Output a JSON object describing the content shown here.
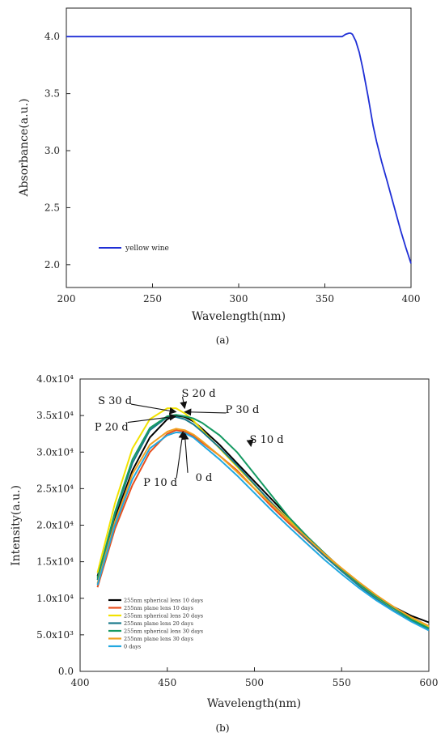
{
  "chart_data": [
    {
      "type": "line",
      "title": "",
      "xlabel": "Wavelength(nm)",
      "ylabel": "Absorbance(a.u.)",
      "panel_label": "(a)",
      "xlim": [
        200,
        400
      ],
      "ylim": [
        1.8,
        4.25
      ],
      "xticks": [
        200,
        250,
        300,
        350,
        400
      ],
      "xtick_labels": [
        "200",
        "250",
        "300",
        "350",
        "400"
      ],
      "yticks": [
        2.0,
        2.5,
        3.0,
        3.5,
        4.0
      ],
      "ytick_labels": [
        "2.0",
        "2.5",
        "3.0",
        "3.5",
        "4.0"
      ],
      "grid": false,
      "legend_position": "bottom-left",
      "series": [
        {
          "name": "yellow wine",
          "color": "#1f2fd6",
          "x": [
            200,
            250,
            300,
            350,
            360,
            362,
            364,
            365,
            366,
            368,
            370,
            372,
            375,
            378,
            380,
            383,
            386,
            390,
            394,
            397,
            400
          ],
          "y": [
            4.0,
            4.0,
            4.0,
            4.0,
            4.0,
            4.02,
            4.03,
            4.03,
            4.02,
            3.96,
            3.86,
            3.72,
            3.48,
            3.22,
            3.08,
            2.9,
            2.74,
            2.52,
            2.3,
            2.15,
            2.01
          ]
        }
      ]
    },
    {
      "type": "line",
      "title": "",
      "xlabel": "Wavelength(nm)",
      "ylabel": "Intensity(a.u.)",
      "panel_label": "(b)",
      "xlim": [
        400,
        600
      ],
      "ylim": [
        0,
        40000
      ],
      "xticks": [
        400,
        450,
        500,
        550,
        600
      ],
      "xtick_labels": [
        "400",
        "450",
        "500",
        "550",
        "600"
      ],
      "yticks": [
        0,
        5000,
        10000,
        15000,
        20000,
        25000,
        30000,
        35000,
        40000
      ],
      "ytick_labels": [
        "0.0",
        "5.0x10³",
        "1.0x10⁴",
        "1.5x10⁴",
        "2.0x10⁴",
        "2.5x10⁴",
        "3.0x10⁴",
        "3.5x10⁴",
        "4.0x10⁴"
      ],
      "grid": false,
      "legend_position": "bottom-left",
      "x": [
        410,
        420,
        430,
        440,
        450,
        455,
        460,
        465,
        470,
        480,
        490,
        500,
        510,
        520,
        530,
        540,
        550,
        560,
        570,
        580,
        590,
        600
      ],
      "series": [
        {
          "name": "255nm spherical lens 10 days",
          "color": "#000000",
          "values": [
            13000,
            21000,
            27500,
            32000,
            34500,
            35000,
            34800,
            34200,
            33200,
            31000,
            28500,
            26000,
            23500,
            21000,
            18500,
            16200,
            14000,
            12000,
            10200,
            8800,
            7600,
            6700
          ]
        },
        {
          "name": "255nm plane lens 10 days",
          "color": "#e8501e",
          "values": [
            11500,
            19500,
            25500,
            30000,
            32500,
            33000,
            32800,
            32200,
            31300,
            29500,
            27500,
            25000,
            22500,
            20200,
            18000,
            15800,
            13800,
            11900,
            10200,
            8700,
            7300,
            6100
          ]
        },
        {
          "name": "255nm spherical lens 20 days",
          "color": "#f2e200",
          "values": [
            13500,
            23000,
            30500,
            34500,
            36000,
            36000,
            35300,
            34300,
            33000,
            30500,
            28000,
            25500,
            23000,
            20700,
            18300,
            16000,
            13900,
            11900,
            10100,
            8600,
            7200,
            6100
          ]
        },
        {
          "name": "255nm plane lens 20 days",
          "color": "#1b7a8c",
          "values": [
            12500,
            21500,
            28500,
            33000,
            34800,
            34800,
            34500,
            33800,
            32800,
            30600,
            28200,
            25600,
            23000,
            20500,
            18100,
            15800,
            13700,
            11700,
            9900,
            8300,
            6900,
            5700
          ]
        },
        {
          "name": "255nm spherical lens 30 days",
          "color": "#159a62",
          "values": [
            12700,
            21800,
            29000,
            33300,
            34900,
            35100,
            34900,
            34600,
            34000,
            32300,
            30000,
            27000,
            24000,
            21000,
            18500,
            16200,
            14000,
            12000,
            10200,
            8600,
            7100,
            5900
          ]
        },
        {
          "name": "255nm plane lens 30 days",
          "color": "#f0a020",
          "values": [
            12000,
            20500,
            27000,
            31000,
            32800,
            33200,
            33000,
            32400,
            31500,
            29500,
            27300,
            25000,
            22800,
            20500,
            18300,
            16100,
            14100,
            12200,
            10400,
            8800,
            7400,
            6200
          ]
        },
        {
          "name": "0 days",
          "color": "#22a8e0",
          "values": [
            11800,
            20000,
            26300,
            30500,
            32300,
            32700,
            32600,
            32000,
            31000,
            29000,
            26800,
            24400,
            22000,
            19700,
            17500,
            15300,
            13300,
            11400,
            9700,
            8200,
            6800,
            5600
          ]
        }
      ],
      "annotations": [
        {
          "text": "S 30 d",
          "x": 420,
          "y": 37000,
          "arrow_to_x": 455,
          "arrow_to_y": 35500
        },
        {
          "text": "S 20 d",
          "x": 468,
          "y": 38000,
          "arrow_to_x": 460,
          "arrow_to_y": 36000
        },
        {
          "text": "P 30 d",
          "x": 493,
          "y": 35800,
          "arrow_to_x": 460,
          "arrow_to_y": 35500
        },
        {
          "text": "P 20 d",
          "x": 418,
          "y": 33400,
          "arrow_to_x": 455,
          "arrow_to_y": 34900
        },
        {
          "text": "S 10 d",
          "x": 507,
          "y": 31700,
          "arrow_to_x": 498,
          "arrow_to_y": 30800
        },
        {
          "text": "P 10 d",
          "x": 446,
          "y": 25800,
          "arrow_to_x": 459,
          "arrow_to_y": 32800
        },
        {
          "text": "0 d",
          "x": 471,
          "y": 26500,
          "arrow_to_x": 460,
          "arrow_to_y": 32600
        }
      ]
    }
  ]
}
